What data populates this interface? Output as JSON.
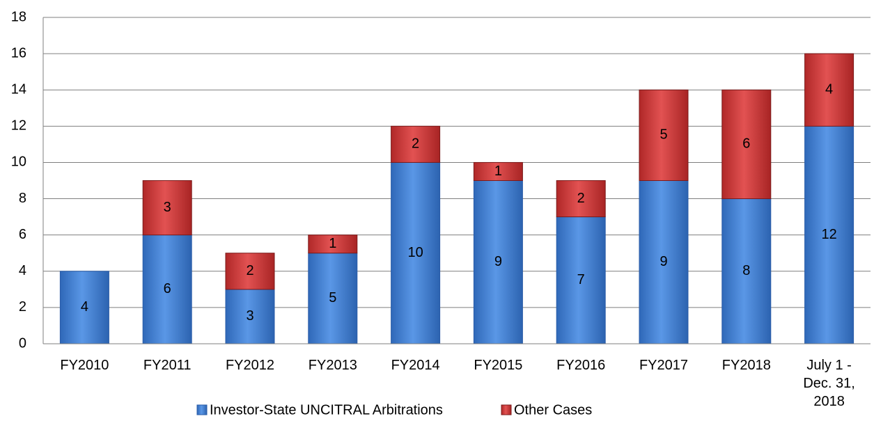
{
  "chart_data": {
    "type": "bar",
    "stacked": true,
    "categories": [
      "FY2010",
      "FY2011",
      "FY2012",
      "FY2013",
      "FY2014",
      "FY2015",
      "FY2016",
      "FY2017",
      "FY2018",
      "July 1 - Dec. 31, 2018"
    ],
    "series": [
      {
        "name": "Investor-State UNCITRAL Arbitrations",
        "color": "#3f7fd6",
        "values": [
          4,
          6,
          3,
          5,
          10,
          9,
          7,
          9,
          8,
          12
        ]
      },
      {
        "name": "Other Cases",
        "color": "#d23a3a",
        "values": [
          null,
          3,
          2,
          1,
          2,
          1,
          2,
          5,
          6,
          4
        ]
      }
    ],
    "ylim": [
      0,
      18
    ],
    "yticks": [
      0,
      2,
      4,
      6,
      8,
      10,
      12,
      14,
      16,
      18
    ],
    "grid": true,
    "legend": "bottom"
  }
}
